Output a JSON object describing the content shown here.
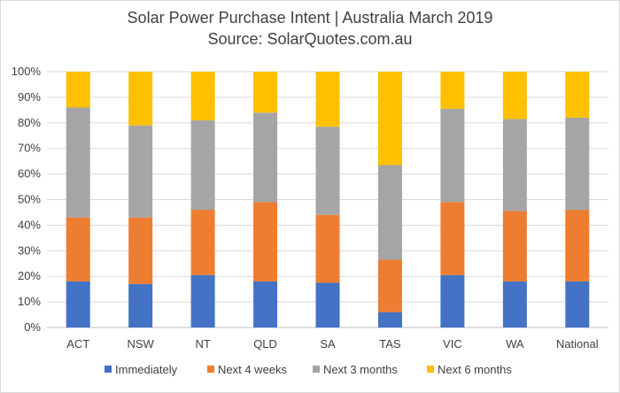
{
  "chart_data": {
    "type": "bar",
    "stacked": true,
    "title": "Solar Power Purchase Intent | Australia March 2019",
    "subtitle": "Source: SolarQuotes.com.au",
    "xlabel": "",
    "ylabel": "",
    "ylim": [
      0,
      100
    ],
    "y_ticks": [
      "0%",
      "10%",
      "20%",
      "30%",
      "40%",
      "50%",
      "60%",
      "70%",
      "80%",
      "90%",
      "100%"
    ],
    "grid": true,
    "legend_position": "bottom",
    "categories": [
      "ACT",
      "NSW",
      "NT",
      "QLD",
      "SA",
      "TAS",
      "VIC",
      "WA",
      "National"
    ],
    "series": [
      {
        "name": "Immediately",
        "color": "#4472c4",
        "values": [
          18,
          17,
          20.5,
          18,
          17.5,
          6,
          20.5,
          18,
          18
        ]
      },
      {
        "name": "Next 4 weeks",
        "color": "#ed7d31",
        "values": [
          25,
          26,
          25.5,
          31,
          26.5,
          20.5,
          28.5,
          27.5,
          28
        ]
      },
      {
        "name": "Next 3 months",
        "color": "#a5a5a5",
        "values": [
          43,
          36,
          35,
          35,
          34.5,
          37,
          36.5,
          36,
          36
        ]
      },
      {
        "name": "Next 6 months",
        "color": "#ffc000",
        "values": [
          14,
          21,
          19,
          16,
          21.5,
          36.5,
          14.5,
          18.5,
          18
        ]
      }
    ]
  }
}
